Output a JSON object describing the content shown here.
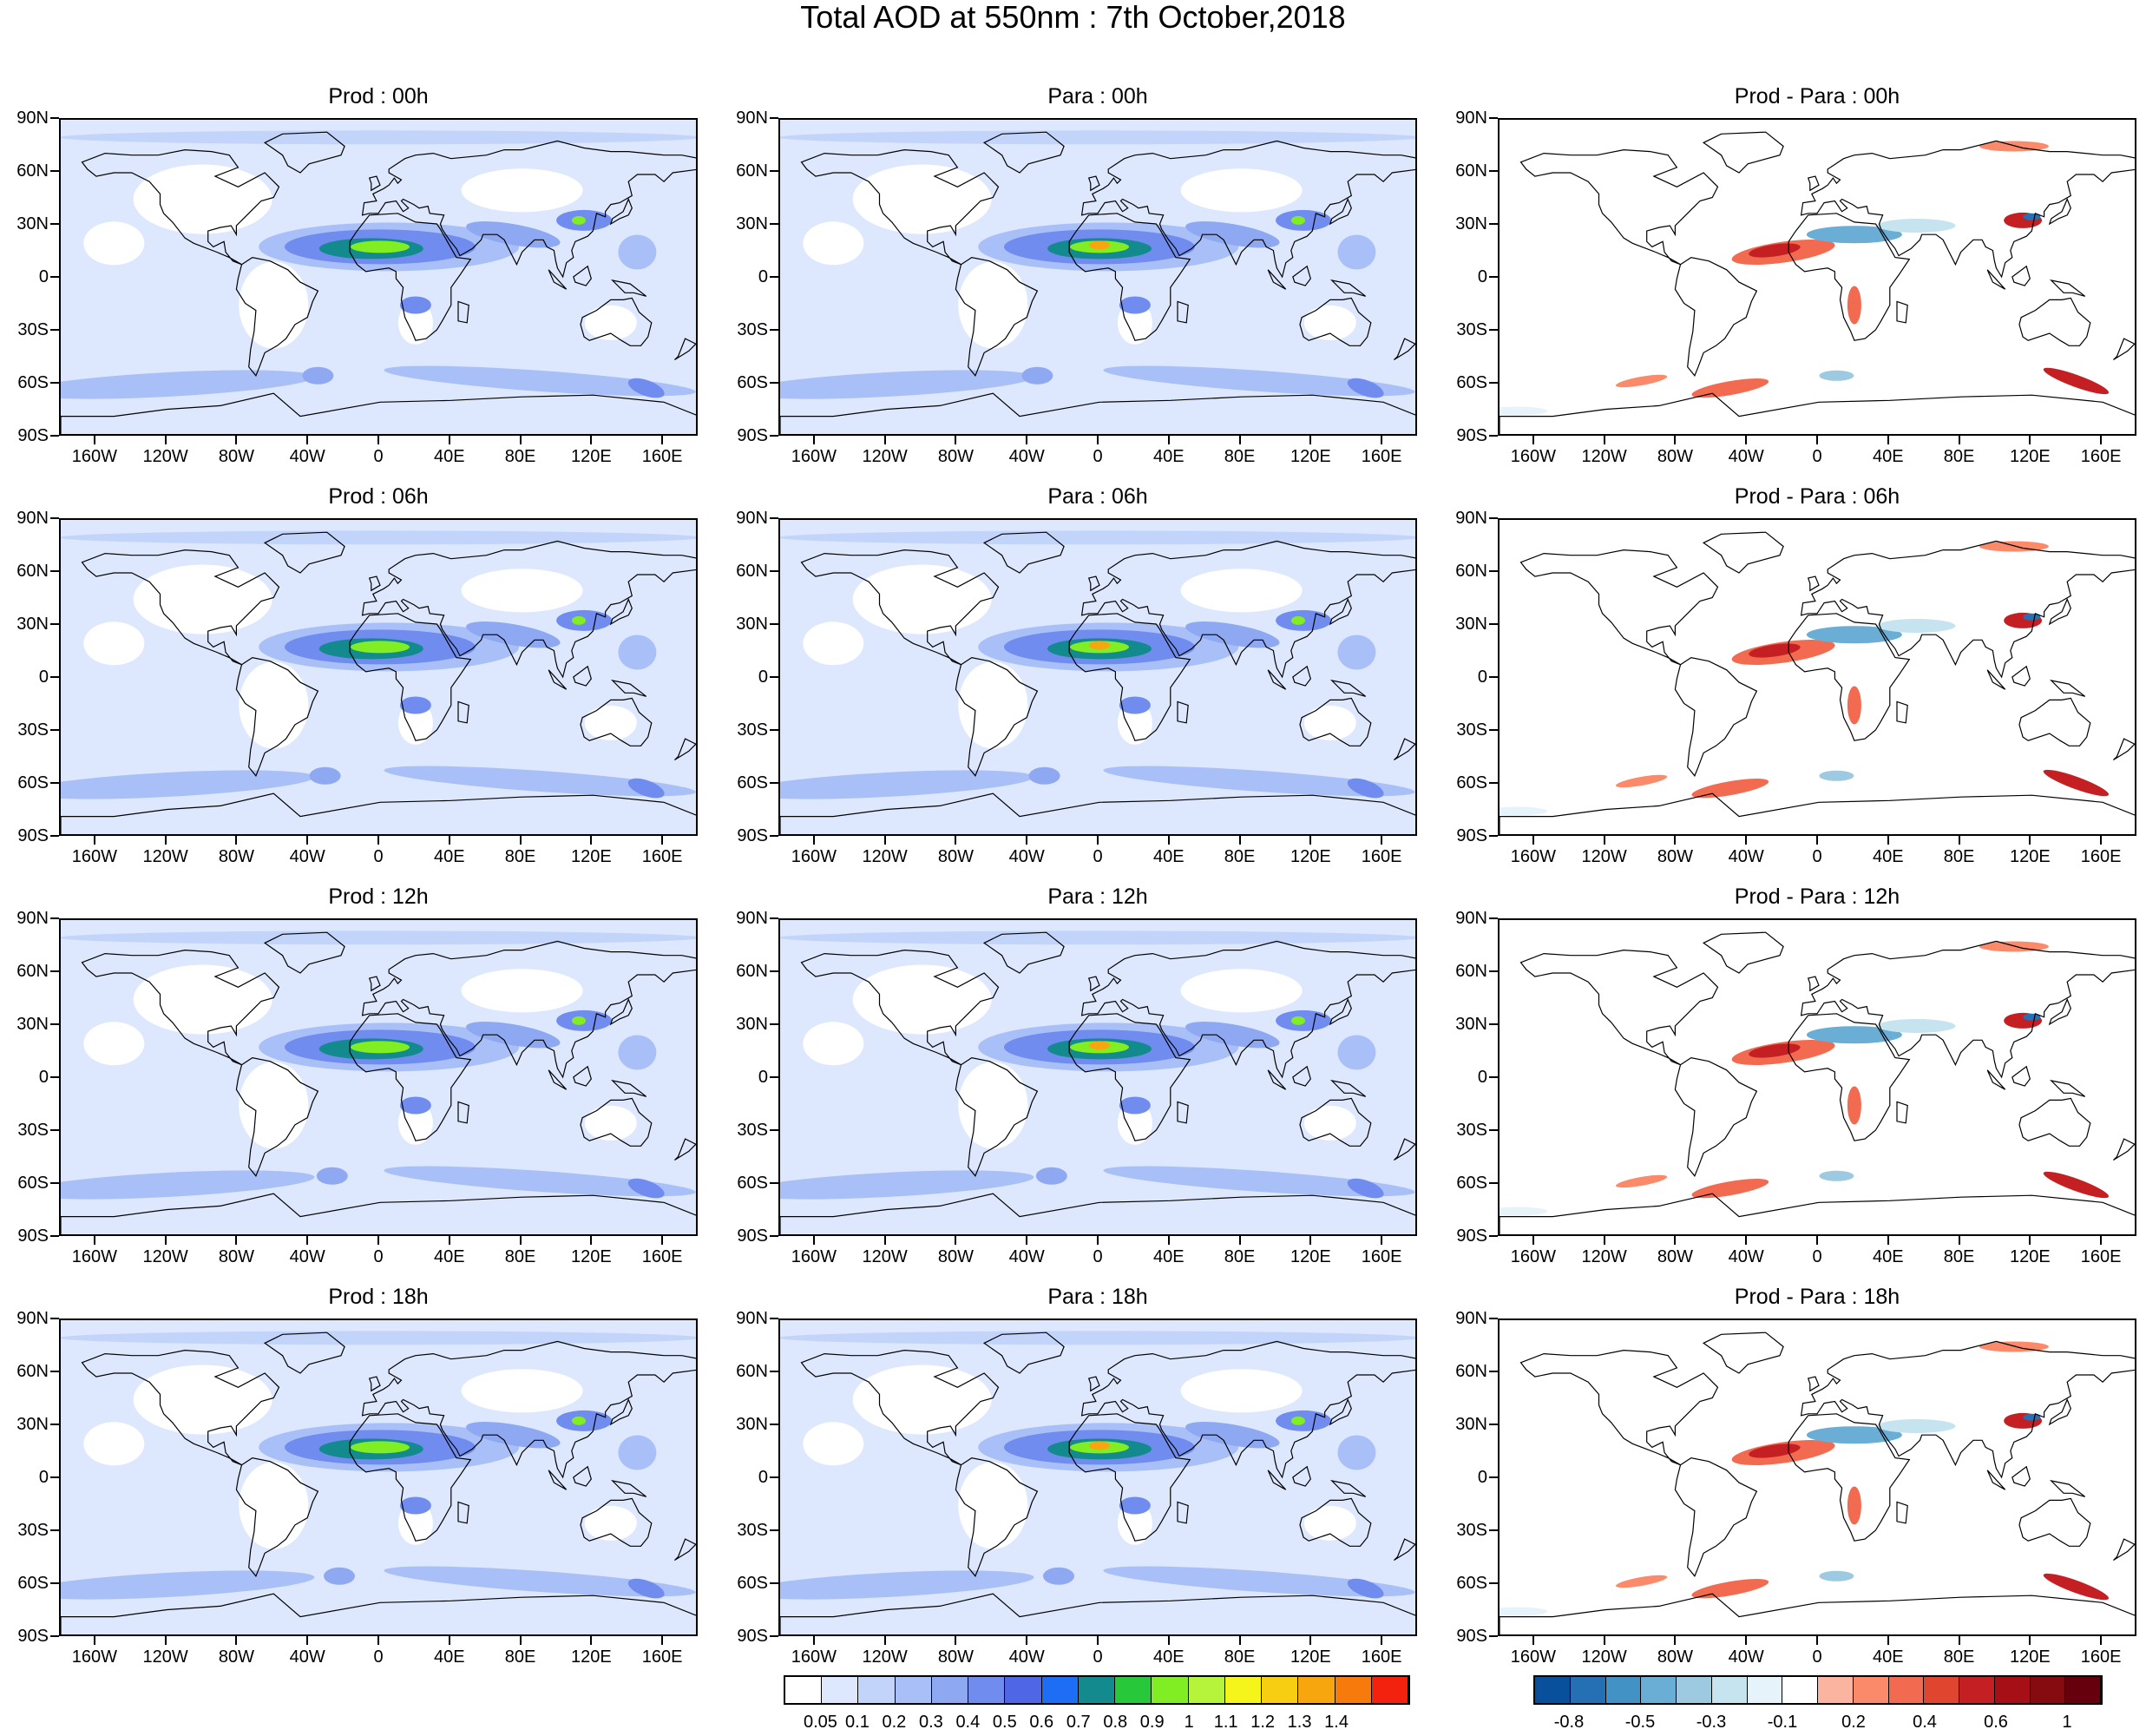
{
  "title": "Total AOD at 550nm : 7th October,2018",
  "panels": [
    [
      "Prod : 00h",
      "Para : 00h",
      "Prod - Para : 00h"
    ],
    [
      "Prod : 06h",
      "Para : 06h",
      "Prod - Para : 06h"
    ],
    [
      "Prod : 12h",
      "Para : 12h",
      "Prod - Para : 12h"
    ],
    [
      "Prod : 18h",
      "Para : 18h",
      "Prod - Para : 18h"
    ]
  ],
  "lat_labels": [
    "90N",
    "60N",
    "30N",
    "0",
    "30S",
    "60S",
    "90S"
  ],
  "lon_labels": [
    "160W",
    "120W",
    "80W",
    "40W",
    "0",
    "40E",
    "80E",
    "120E",
    "160E"
  ],
  "aod_colorbar": {
    "labels": [
      "0.05",
      "0.1",
      "0.2",
      "0.3",
      "0.4",
      "0.5",
      "0.6",
      "0.7",
      "0.8",
      "0.9",
      "1",
      "1.1",
      "1.2",
      "1.3",
      "1.4"
    ],
    "colors": [
      "#ffffff",
      "#dde8ff",
      "#c3d4fb",
      "#a9bff7",
      "#8fa8f2",
      "#6f8cee",
      "#4f66e6",
      "#1e6ef5",
      "#128a8e",
      "#27c93a",
      "#80ee23",
      "#b5f43b",
      "#f5f51c",
      "#f8ce12",
      "#f8a60e",
      "#f67b0c",
      "#f2220e"
    ]
  },
  "diff_colorbar": {
    "labels": [
      "-0.8",
      "-0.5",
      "-0.3",
      "-0.1",
      "0.2",
      "0.4",
      "0.6",
      "1"
    ],
    "colors": [
      "#08509c",
      "#2570b4",
      "#4292c6",
      "#6aaed6",
      "#9ecae1",
      "#c6e3f0",
      "#e7f3fa",
      "#ffffff",
      "#fbb4a0",
      "#fb8a6a",
      "#f26a4f",
      "#e0462f",
      "#c42024",
      "#a50f15",
      "#860b10",
      "#67000d"
    ]
  },
  "colors": {
    "land_outline": "#000000",
    "aod_background": "#dde8ff",
    "diff_positive": "#f26a4f",
    "diff_negative": "#4292c6"
  }
}
